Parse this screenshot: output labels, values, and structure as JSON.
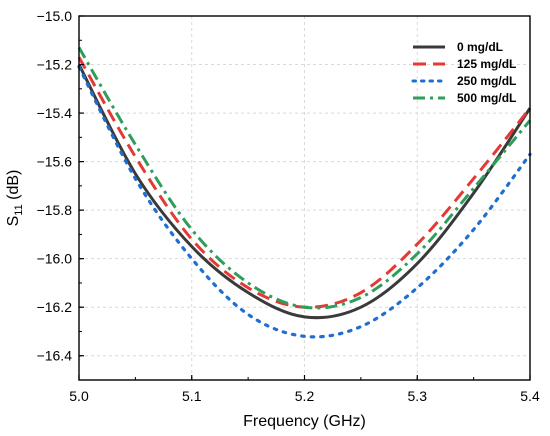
{
  "chart_data": {
    "type": "line",
    "xlabel": "Frequency (GHz)",
    "ylabel": {
      "main": "S",
      "sub": "11",
      "tail": " (dB)"
    },
    "xlim": [
      5.0,
      5.4
    ],
    "ylim": [
      -16.5,
      -15.0
    ],
    "xticks": [
      "5.0",
      "5.1",
      "5.2",
      "5.3",
      "5.4"
    ],
    "yticks": [
      "−15.0",
      "−15.2",
      "−15.4",
      "−15.6",
      "−15.8",
      "−16.0",
      "−16.2",
      "−16.4"
    ],
    "grid": true,
    "legend_position": "top-right",
    "series": [
      {
        "name": "0 mg/dL",
        "color": "#3a3a3a",
        "style": "solid",
        "x": [
          5.0,
          5.05,
          5.1,
          5.15,
          5.2,
          5.25,
          5.3,
          5.35,
          5.4
        ],
        "y": [
          -15.2,
          -15.65,
          -15.95,
          -16.14,
          -16.24,
          -16.2,
          -16.02,
          -15.73,
          -15.38
        ]
      },
      {
        "name": "125 mg/dL",
        "color": "#e53935",
        "style": "dashed",
        "x": [
          5.0,
          5.05,
          5.1,
          5.15,
          5.2,
          5.25,
          5.3,
          5.35,
          5.4
        ],
        "y": [
          -15.17,
          -15.58,
          -15.92,
          -16.12,
          -16.2,
          -16.14,
          -15.94,
          -15.67,
          -15.38
        ]
      },
      {
        "name": "250 mg/dL",
        "color": "#1e6fd0",
        "style": "dotted",
        "x": [
          5.0,
          5.05,
          5.1,
          5.15,
          5.2,
          5.25,
          5.3,
          5.35,
          5.4
        ],
        "y": [
          -15.21,
          -15.67,
          -16.0,
          -16.23,
          -16.32,
          -16.28,
          -16.12,
          -15.88,
          -15.57
        ]
      },
      {
        "name": "500 mg/dL",
        "color": "#2e9e5b",
        "style": "dashdot",
        "x": [
          5.0,
          5.05,
          5.1,
          5.15,
          5.2,
          5.25,
          5.3,
          5.35,
          5.4
        ],
        "y": [
          -15.13,
          -15.53,
          -15.88,
          -16.1,
          -16.2,
          -16.16,
          -15.98,
          -15.71,
          -15.43
        ]
      }
    ]
  }
}
